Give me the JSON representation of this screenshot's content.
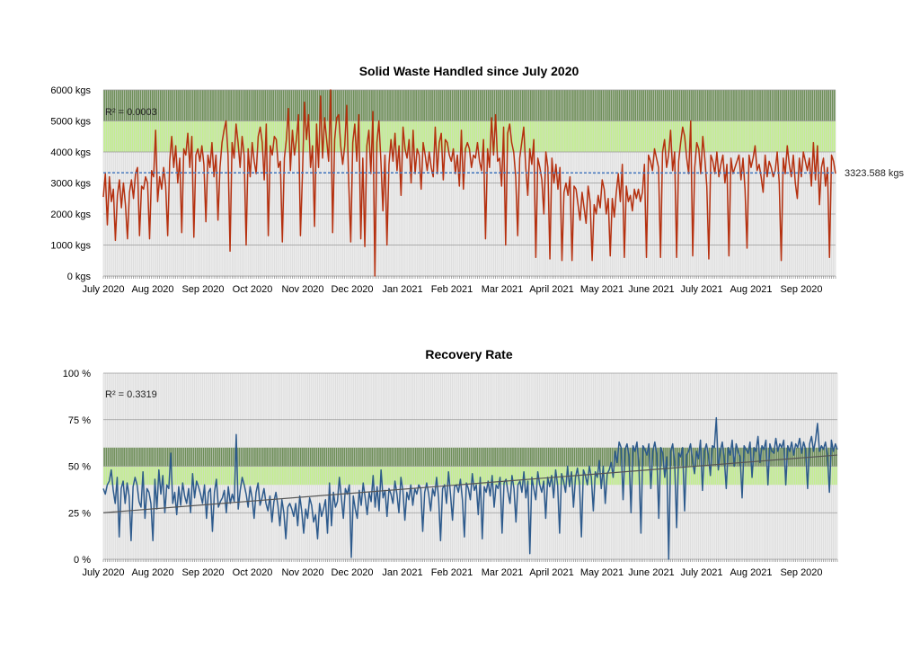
{
  "chart_data": [
    {
      "type": "line",
      "title": "Solid Waste Handled since July 2020",
      "xlabel": "",
      "ylabel": "",
      "y_ticks": [
        "0 kgs",
        "1000 kgs",
        "2000 kgs",
        "3000 kgs",
        "4000 kgs",
        "5000 kgs",
        "6000 kgs"
      ],
      "ylim": [
        0,
        6000
      ],
      "x_ticks": [
        "July 2020",
        "Aug 2020",
        "Sep 2020",
        "Oct 2020",
        "Nov 2020",
        "Dec 2020",
        "Jan 2021",
        "Feb 2021",
        "Mar 2021",
        "April 2021",
        "May 2021",
        "June 2021",
        "July 2021",
        "Aug 2021",
        "Sep 2020"
      ],
      "grid": true,
      "bands": [
        {
          "from": 5000,
          "to": 6000,
          "color": "#6e8f58"
        },
        {
          "from": 4000,
          "to": 5000,
          "color": "#c3ef8f"
        }
      ],
      "series_color": "#b5300f",
      "series": [
        {
          "values": [
            2550,
            3300,
            1650,
            3200,
            2400,
            2800,
            1150,
            2600,
            3100,
            2200,
            3000,
            2300,
            1200,
            2700,
            3100,
            2500,
            3300,
            3500,
            1300,
            2900,
            2800,
            3200,
            3000,
            1200,
            3400,
            3200,
            4700,
            2400,
            3200,
            2800,
            3500,
            2900,
            1300,
            3700,
            4500,
            3500,
            4200,
            3000,
            3800,
            1400,
            4100,
            3900,
            4600,
            3500,
            4500,
            1250,
            3900,
            4100,
            3700,
            4200,
            3600,
            1750,
            3900,
            3500,
            4300,
            3200,
            3900,
            1800,
            3500,
            4300,
            4700,
            5000,
            3900,
            800,
            4300,
            3800,
            4900,
            4300,
            3500,
            4500,
            3900,
            1000,
            4100,
            3200,
            4300,
            3700,
            3300,
            4500,
            4800,
            4300,
            3100,
            4900,
            1300,
            4200,
            3900,
            4500,
            4400,
            3500,
            3700,
            1100,
            3800,
            4400,
            5400,
            3400,
            4700,
            3900,
            4400,
            5200,
            1300,
            3300,
            5600,
            4400,
            5200,
            3500,
            4200,
            1600,
            4900,
            3500,
            5800,
            3800,
            5100,
            4400,
            3700,
            6000,
            1400,
            4400,
            5100,
            5200,
            4200,
            3600,
            4200,
            5500,
            3000,
            1100,
            4300,
            4900,
            3700,
            5200,
            1200,
            3800,
            950,
            4200,
            4700,
            3300,
            5300,
            0,
            4300,
            5000,
            3700,
            2100,
            3900,
            1000,
            3600,
            4400,
            3700,
            4600,
            3400,
            4200,
            2600,
            4800,
            4100,
            3800,
            4400,
            3000,
            4700,
            3300,
            4100,
            3900,
            2800,
            4300,
            3900,
            3400,
            4000,
            3500,
            3200,
            4800,
            3300,
            4300,
            4600,
            3100,
            4400,
            4300,
            3900,
            3700,
            4100,
            3300,
            3900,
            2900,
            4700,
            2800,
            4100,
            4300,
            4100,
            3500,
            3900,
            3800,
            4300,
            3700,
            3400,
            4400,
            1200,
            4100,
            3500,
            5100,
            3900,
            5200,
            3700,
            3800,
            2900,
            4800,
            1000,
            4600,
            4900,
            4300,
            4000,
            3200,
            1300,
            3800,
            4300,
            4800,
            3500,
            2600,
            4100,
            3600,
            4400,
            600,
            3800,
            3500,
            3100,
            2000,
            4000,
            3500,
            550,
            3800,
            3000,
            3600,
            2800,
            3500,
            500,
            2700,
            3000,
            2600,
            3200,
            500,
            2900,
            2800,
            2300,
            1800,
            2700,
            2200,
            1700,
            2900,
            2400,
            500,
            2300,
            2000,
            2600,
            2200,
            3100,
            2800,
            2000,
            2500,
            650,
            2500,
            1900,
            2700,
            3300,
            2400,
            3600,
            600,
            2900,
            2400,
            2600,
            2100,
            2800,
            2500,
            2800,
            2400,
            2700,
            3600,
            600,
            3900,
            3700,
            3400,
            4100,
            3800,
            3500,
            600,
            4000,
            4400,
            3500,
            3900,
            4700,
            3400,
            4000,
            600,
            3700,
            4300,
            4800,
            4500,
            3800,
            3300,
            5000,
            650,
            3500,
            4300,
            4100,
            3300,
            4500,
            3800,
            2900,
            550,
            3900,
            3700,
            3300,
            4000,
            3200,
            3600,
            3900,
            3000,
            3600,
            650,
            3800,
            3300,
            3500,
            3700,
            3900,
            3100,
            3800,
            2800,
            900,
            3900,
            3500,
            3800,
            4200,
            3400,
            3600,
            3200,
            2700,
            3900,
            3200,
            3700,
            3500,
            3200,
            3400,
            4000,
            3000,
            500,
            3800,
            3300,
            4200,
            3600,
            3200,
            3900,
            3000,
            2500,
            3800,
            3200,
            4000,
            3700,
            3400,
            3800,
            2900,
            4300,
            3100,
            4200,
            2300,
            3500,
            3800,
            2900,
            3500,
            600,
            3900,
            3700,
            3300
          ]
        }
      ],
      "trendline": {
        "start": 3330,
        "end": 3323.588,
        "label": "3323.588 kgs"
      },
      "r_squared_label": "R² = 0.0003"
    },
    {
      "type": "line",
      "title": "Recovery Rate",
      "xlabel": "",
      "ylabel": "",
      "y_ticks": [
        "0 %",
        "25 %",
        "50 %",
        "75 %",
        "100 %"
      ],
      "ylim": [
        0,
        100
      ],
      "x_ticks": [
        "July 2020",
        "Aug 2020",
        "Sep 2020",
        "Oct 2020",
        "Nov 2020",
        "Dec 2020",
        "Jan 2021",
        "Feb 2021",
        "Mar 2021",
        "April 2021",
        "May 2021",
        "June 2021",
        "July 2021",
        "Aug 2021",
        "Sep 2020"
      ],
      "grid": true,
      "bands": [
        {
          "from": 50,
          "to": 60,
          "color": "#6e8f58"
        },
        {
          "from": 40,
          "to": 50,
          "color": "#c3ef8f"
        }
      ],
      "series_color": "#2d5a8c",
      "series": [
        {
          "values": [
            38,
            35,
            40,
            42,
            48,
            37,
            30,
            44,
            12,
            38,
            42,
            30,
            41,
            34,
            10,
            39,
            44,
            40,
            31,
            28,
            47,
            22,
            38,
            36,
            30,
            10,
            43,
            27,
            48,
            35,
            45,
            25,
            40,
            38,
            57,
            30,
            36,
            24,
            39,
            29,
            41,
            34,
            30,
            38,
            25,
            46,
            33,
            42,
            39,
            35,
            30,
            40,
            22,
            36,
            38,
            15,
            36,
            43,
            28,
            31,
            33,
            37,
            25,
            39,
            30,
            35,
            31,
            67,
            27,
            37,
            44,
            40,
            35,
            28,
            39,
            33,
            22,
            36,
            41,
            29,
            33,
            38,
            30,
            26,
            34,
            20,
            31,
            36,
            29,
            18,
            32,
            25,
            11,
            28,
            30,
            27,
            23,
            30,
            18,
            34,
            26,
            14,
            27,
            22,
            33,
            29,
            20,
            24,
            11,
            30,
            23,
            27,
            32,
            14,
            41,
            18,
            36,
            28,
            31,
            44,
            33,
            22,
            38,
            35,
            40,
            1,
            34,
            27,
            22,
            37,
            29,
            41,
            33,
            24,
            36,
            31,
            45,
            28,
            39,
            26,
            48,
            33,
            37,
            23,
            38,
            35,
            30,
            42,
            35,
            25,
            44,
            37,
            21,
            36,
            32,
            40,
            29,
            38,
            35,
            40,
            38,
            15,
            36,
            41,
            35,
            26,
            38,
            34,
            44,
            33,
            10,
            38,
            40,
            30,
            47,
            35,
            21,
            39,
            40,
            36,
            43,
            32,
            12,
            41,
            38,
            32,
            46,
            37,
            40,
            24,
            44,
            11,
            39,
            36,
            42,
            34,
            45,
            28,
            40,
            38,
            44,
            14,
            41,
            43,
            36,
            30,
            45,
            38,
            20,
            40,
            42,
            36,
            47,
            33,
            42,
            3,
            44,
            38,
            32,
            47,
            40,
            36,
            42,
            22,
            44,
            39,
            45,
            33,
            48,
            40,
            14,
            46,
            42,
            36,
            50,
            39,
            47,
            28,
            44,
            49,
            41,
            12,
            48,
            45,
            40,
            50,
            44,
            26,
            47,
            44,
            53,
            38,
            50,
            30,
            46,
            48,
            52,
            44,
            58,
            52,
            63,
            60,
            32,
            59,
            62,
            55,
            25,
            61,
            58,
            63,
            50,
            14,
            61,
            59,
            56,
            62,
            38,
            58,
            63,
            56,
            22,
            60,
            57,
            44,
            55,
            0,
            58,
            62,
            52,
            17,
            57,
            55,
            60,
            26,
            56,
            58,
            62,
            53,
            46,
            58,
            54,
            64,
            37,
            58,
            62,
            56,
            45,
            61,
            60,
            76,
            48,
            58,
            63,
            54,
            38,
            60,
            56,
            64,
            50,
            62,
            58,
            55,
            33,
            61,
            59,
            57,
            63,
            44,
            60,
            58,
            66,
            52,
            61,
            59,
            64,
            40,
            62,
            58,
            57,
            65,
            58,
            62,
            60,
            64,
            40,
            61,
            58,
            63,
            56,
            62,
            60,
            65,
            57,
            63,
            59,
            38,
            62,
            66,
            58,
            64,
            73,
            58,
            61,
            59,
            63,
            56,
            36,
            64,
            58,
            62,
            59
          ]
        }
      ],
      "trendline": {
        "start": 25,
        "end": 56
      },
      "r_squared_label": "R² = 0.3319"
    }
  ]
}
